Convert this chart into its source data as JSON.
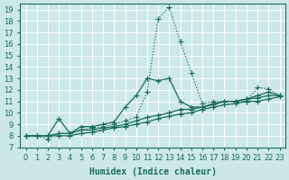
{
  "xlabel": "Humidex (Indice chaleur)",
  "bg_color": "#cce8e8",
  "grid_color": "#ffffff",
  "line_color": "#1a6b5a",
  "x_values": [
    0,
    1,
    2,
    3,
    4,
    5,
    6,
    7,
    8,
    9,
    10,
    11,
    12,
    13,
    14,
    15,
    16,
    17,
    18,
    19,
    20,
    21,
    22,
    23
  ],
  "series": [
    [
      8,
      8,
      7.7,
      8.2,
      8.2,
      8.5,
      8.7,
      8.8,
      9.0,
      9.3,
      9.6,
      11.8,
      18.2,
      19.2,
      16.2,
      13.5,
      10.8,
      11.0,
      11.0,
      11.0,
      11.0,
      12.2,
      12.1,
      11.5
    ],
    [
      8,
      8,
      8,
      9.5,
      8.2,
      8.8,
      8.8,
      9.0,
      9.2,
      10.5,
      11.5,
      13.0,
      12.8,
      13.0,
      11.0,
      10.5,
      10.5,
      10.8,
      11.0,
      11.0,
      11.2,
      11.5,
      11.8,
      11.5
    ],
    [
      8,
      8,
      8,
      8.2,
      8.2,
      8.5,
      8.5,
      8.7,
      8.8,
      9.0,
      9.3,
      9.6,
      9.8,
      10.0,
      10.3,
      10.3,
      10.5,
      10.7,
      11.0,
      11.0,
      11.2,
      11.3,
      11.5,
      11.5
    ],
    [
      8,
      8,
      8,
      8.0,
      8.0,
      8.2,
      8.3,
      8.5,
      8.7,
      8.8,
      9.0,
      9.2,
      9.5,
      9.7,
      9.9,
      10.0,
      10.3,
      10.5,
      10.7,
      10.8,
      11.0,
      11.0,
      11.2,
      11.4
    ]
  ],
  "xlim": [
    -0.5,
    23.5
  ],
  "ylim": [
    7,
    19.5
  ],
  "yticks": [
    7,
    8,
    9,
    10,
    11,
    12,
    13,
    14,
    15,
    16,
    17,
    18,
    19
  ],
  "xticks": [
    0,
    1,
    2,
    3,
    4,
    5,
    6,
    7,
    8,
    9,
    10,
    11,
    12,
    13,
    14,
    15,
    16,
    17,
    18,
    19,
    20,
    21,
    22,
    23
  ],
  "xlabel_fontsize": 7,
  "tick_fontsize": 6,
  "marker": "+",
  "marker_size": 4,
  "linewidth": 0.9
}
